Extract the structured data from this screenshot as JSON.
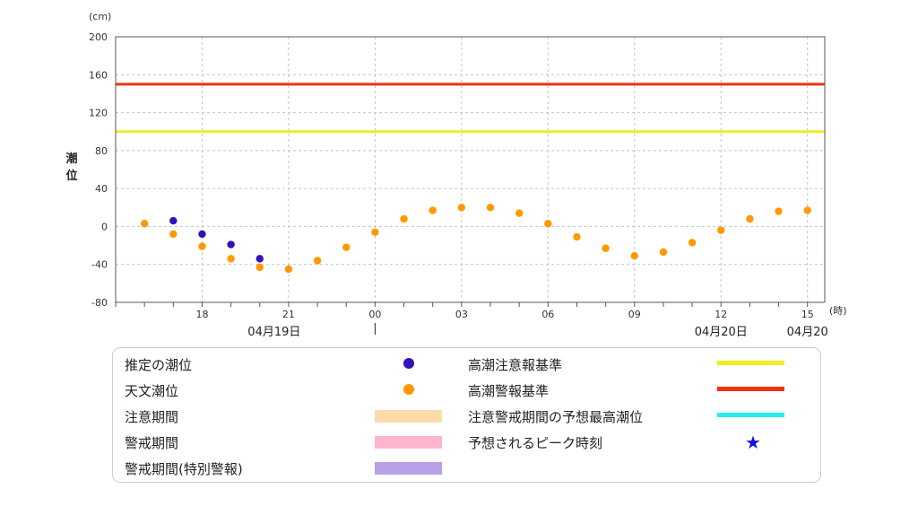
{
  "chart_data": {
    "type": "scatter",
    "y_unit": "(cm)",
    "ylabel": "潮位",
    "x_unit": "(時)",
    "ylim": [
      -80,
      200
    ],
    "yticks": [
      200,
      160,
      120,
      80,
      40,
      0,
      -40,
      -80
    ],
    "x_range_hours": [
      15,
      39.6
    ],
    "x_ticks": [
      {
        "h": 18,
        "label": "18"
      },
      {
        "h": 21,
        "label": "21"
      },
      {
        "h": 24,
        "label": "00"
      },
      {
        "h": 27,
        "label": "03"
      },
      {
        "h": 30,
        "label": "06"
      },
      {
        "h": 33,
        "label": "09"
      },
      {
        "h": 36,
        "label": "12"
      },
      {
        "h": 39,
        "label": "15"
      }
    ],
    "date_labels": [
      {
        "h": 20.5,
        "label": "04月19日"
      },
      {
        "h": 36,
        "label": "04月20日"
      },
      {
        "h": 39,
        "label": "04月20"
      }
    ],
    "day_divider_h": 24,
    "thresholds": [
      {
        "name": "高潮警報基準",
        "value": 150,
        "color": "#ee3311"
      },
      {
        "name": "高潮注意報基準",
        "value": 100,
        "color": "#eeee22"
      }
    ],
    "series": [
      {
        "name": "推定の潮位",
        "color": "#3311bb",
        "points": [
          [
            17,
            6
          ],
          [
            18,
            -8
          ],
          [
            19,
            -19
          ],
          [
            20,
            -34
          ]
        ]
      },
      {
        "name": "天文潮位",
        "color": "#ff9900",
        "points": [
          [
            16,
            3
          ],
          [
            17,
            -8
          ],
          [
            18,
            -21
          ],
          [
            19,
            -34
          ],
          [
            20,
            -43
          ],
          [
            21,
            -45
          ],
          [
            22,
            -36
          ],
          [
            23,
            -22
          ],
          [
            24,
            -6
          ],
          [
            25,
            8
          ],
          [
            26,
            17
          ],
          [
            27,
            20
          ],
          [
            28,
            20
          ],
          [
            29,
            14
          ],
          [
            30,
            3
          ],
          [
            31,
            -11
          ],
          [
            32,
            -23
          ],
          [
            33,
            -31
          ],
          [
            34,
            -27
          ],
          [
            35,
            -17
          ],
          [
            36,
            -4
          ],
          [
            37,
            8
          ],
          [
            38,
            16
          ],
          [
            39,
            17
          ]
        ]
      }
    ]
  },
  "legend": {
    "estimated_label": "推定の潮位",
    "astronomical_label": "天文潮位",
    "caution_period_label": "注意期間",
    "warning_period_label": "警戒期間",
    "warning_special_label": "警戒期間(特別警報)",
    "advisory_criterion_label": "高潮注意報基準",
    "warning_criterion_label": "高潮警報基準",
    "peak_forecast_label": "注意警戒期間の予想最高潮位",
    "peak_time_label": "予想されるピーク時刻",
    "colors": {
      "estimated": "#3311bb",
      "astronomical": "#ff9900",
      "caution_period": "#fddcaa",
      "warning_period": "#fdb5cc",
      "warning_special": "#b8a0e6",
      "advisory_line": "#eeee22",
      "warning_line": "#ee3311",
      "peak_line": "#22eeee",
      "peak_star": "#1111dd"
    },
    "peak_star_icon": "star-icon"
  }
}
